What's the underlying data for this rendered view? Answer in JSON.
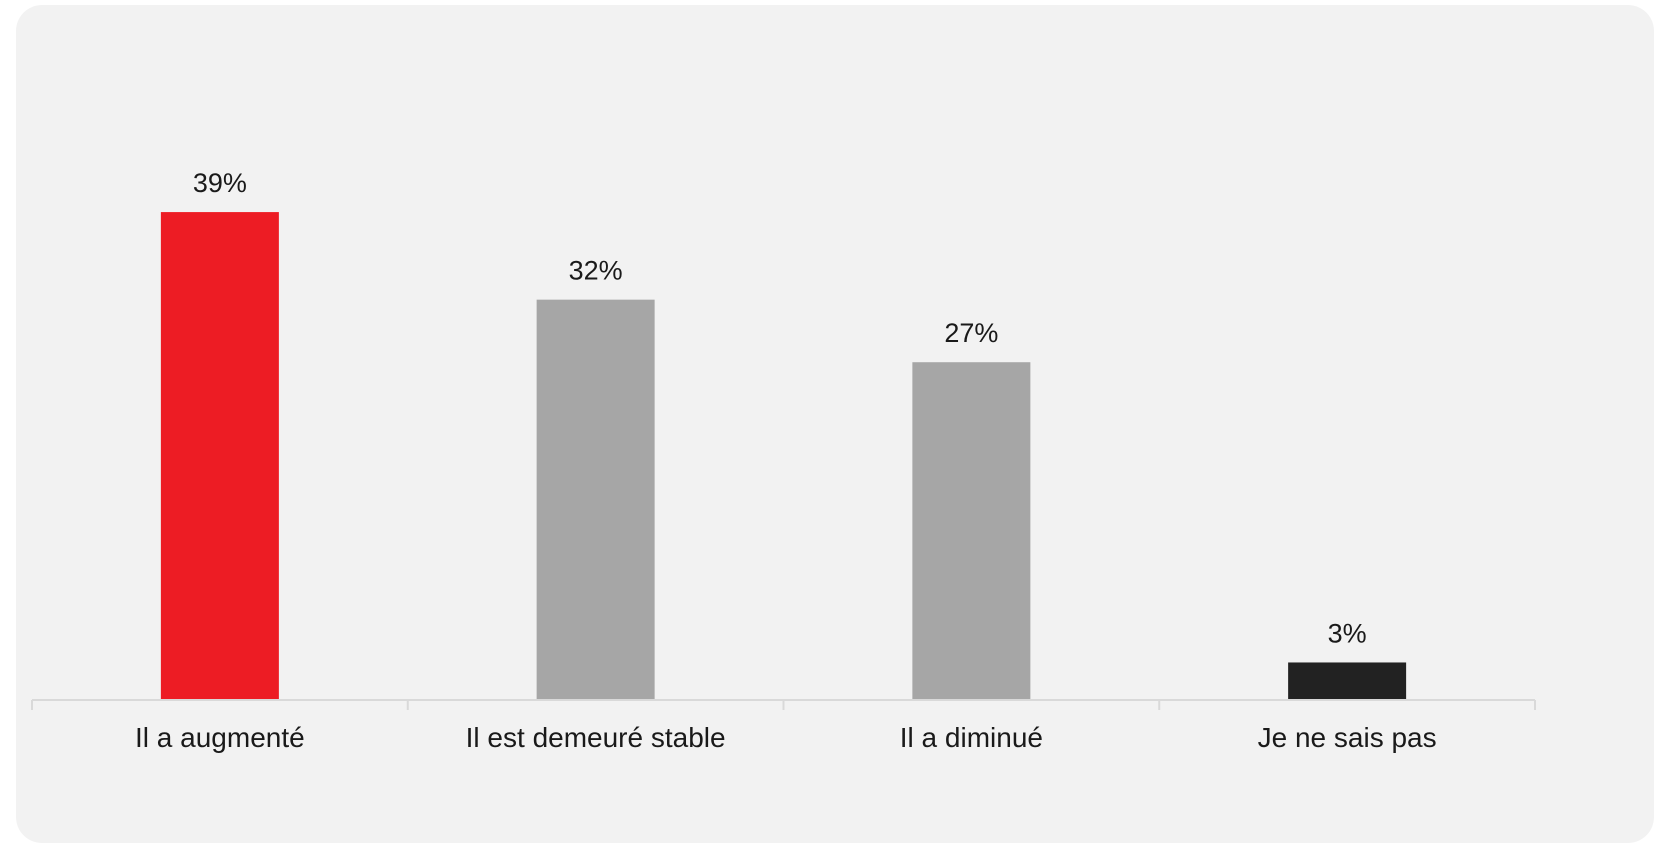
{
  "chart_data": {
    "type": "bar",
    "categories": [
      "Il a augmenté",
      "Il est demeuré stable",
      "Il a diminué",
      "Je ne sais pas"
    ],
    "values": [
      39,
      32,
      27,
      3
    ],
    "value_labels": [
      "39%",
      "32%",
      "27%",
      "3%"
    ],
    "colors": [
      "#ed1c24",
      "#a6a6a6",
      "#a6a6a6",
      "#222222"
    ],
    "ylim": [
      0,
      47
    ],
    "grid": false,
    "legend": "none",
    "title": "",
    "xlabel": "",
    "ylabel": ""
  }
}
